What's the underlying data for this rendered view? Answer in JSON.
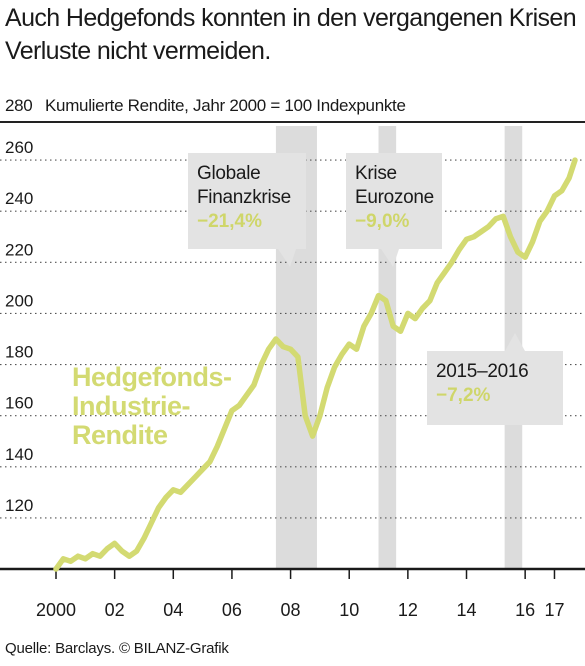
{
  "title_lines": [
    "Auch Hedgefonds konnten in den vergangenen Krisen",
    "Verluste nicht vermeiden."
  ],
  "subtitle": "Kumulierte Rendite, Jahr 2000 = 100 Indexpunkte",
  "source": "Quelle: Barclays. © BILANZ-Grafik",
  "colors": {
    "series": "#d3da72",
    "shade": "#dcdcdc",
    "callout_bg": "#e3e3e3",
    "callout_value": "#cfd66a",
    "axis": "#1a1a1a",
    "grid": "#555555"
  },
  "chart_data": {
    "type": "line",
    "title": "Auch Hedgefonds konnten in den vergangenen Krisen Verluste nicht vermeiden.",
    "ylabel": "Kumulierte Rendite, Jahr 2000 = 100 Indexpunkte",
    "xlabel": "",
    "ylim": [
      100,
      280
    ],
    "xlim": [
      2000,
      2017.7
    ],
    "y_ticks": [
      120,
      140,
      160,
      180,
      200,
      220,
      240,
      260,
      280
    ],
    "x_ticks": [
      {
        "value": 2000,
        "label": "2000"
      },
      {
        "value": 2002,
        "label": "02"
      },
      {
        "value": 2004,
        "label": "04"
      },
      {
        "value": 2006,
        "label": "06"
      },
      {
        "value": 2008,
        "label": "08"
      },
      {
        "value": 2010,
        "label": "10"
      },
      {
        "value": 2012,
        "label": "12"
      },
      {
        "value": 2014,
        "label": "14"
      },
      {
        "value": 2016,
        "label": "16"
      },
      {
        "value": 2017,
        "label": "17"
      }
    ],
    "grid": true,
    "series": [
      {
        "name": "Hedgefonds-Industrie-Rendite",
        "label_lines": [
          "Hedgefonds-",
          "Industrie-",
          "Rendite"
        ],
        "x": [
          2000.0,
          2000.25,
          2000.5,
          2000.75,
          2001.0,
          2001.25,
          2001.5,
          2001.75,
          2002.0,
          2002.25,
          2002.5,
          2002.75,
          2003.0,
          2003.25,
          2003.5,
          2003.75,
          2004.0,
          2004.25,
          2004.5,
          2004.75,
          2005.0,
          2005.25,
          2005.5,
          2005.75,
          2006.0,
          2006.25,
          2006.5,
          2006.75,
          2007.0,
          2007.25,
          2007.5,
          2007.75,
          2008.0,
          2008.25,
          2008.5,
          2008.75,
          2009.0,
          2009.25,
          2009.5,
          2009.75,
          2010.0,
          2010.25,
          2010.5,
          2010.75,
          2011.0,
          2011.25,
          2011.5,
          2011.75,
          2012.0,
          2012.25,
          2012.5,
          2012.75,
          2013.0,
          2013.25,
          2013.5,
          2013.75,
          2014.0,
          2014.25,
          2014.5,
          2014.75,
          2015.0,
          2015.25,
          2015.5,
          2015.75,
          2016.0,
          2016.25,
          2016.5,
          2016.75,
          2017.0,
          2017.25,
          2017.5,
          2017.7
        ],
        "values": [
          100,
          104,
          103,
          105,
          104,
          106,
          105,
          108,
          110,
          107,
          105,
          107,
          112,
          118,
          124,
          128,
          131,
          130,
          133,
          136,
          139,
          142,
          148,
          155,
          162,
          164,
          168,
          172,
          180,
          186,
          190,
          187,
          186,
          183,
          160,
          152,
          160,
          171,
          179,
          184,
          188,
          186,
          195,
          200,
          207,
          205,
          195,
          193,
          200,
          198,
          202,
          205,
          212,
          216,
          220,
          225,
          229,
          230,
          232,
          234,
          237,
          238,
          230,
          224,
          222,
          228,
          236,
          240,
          246,
          248,
          253,
          260
        ]
      }
    ],
    "crisis_bands": [
      {
        "x0": 2007.5,
        "x1": 2008.9
      },
      {
        "x0": 2011.0,
        "x1": 2011.6
      },
      {
        "x0": 2015.3,
        "x1": 2015.9
      }
    ],
    "annotations": [
      {
        "lines": [
          "Globale",
          "Finanzkrise"
        ],
        "value": "−21,4%"
      },
      {
        "lines": [
          "Krise",
          "Eurozone"
        ],
        "value": "−9,0%"
      },
      {
        "lines": [
          "2015–2016"
        ],
        "value": "−7,2%"
      }
    ]
  }
}
